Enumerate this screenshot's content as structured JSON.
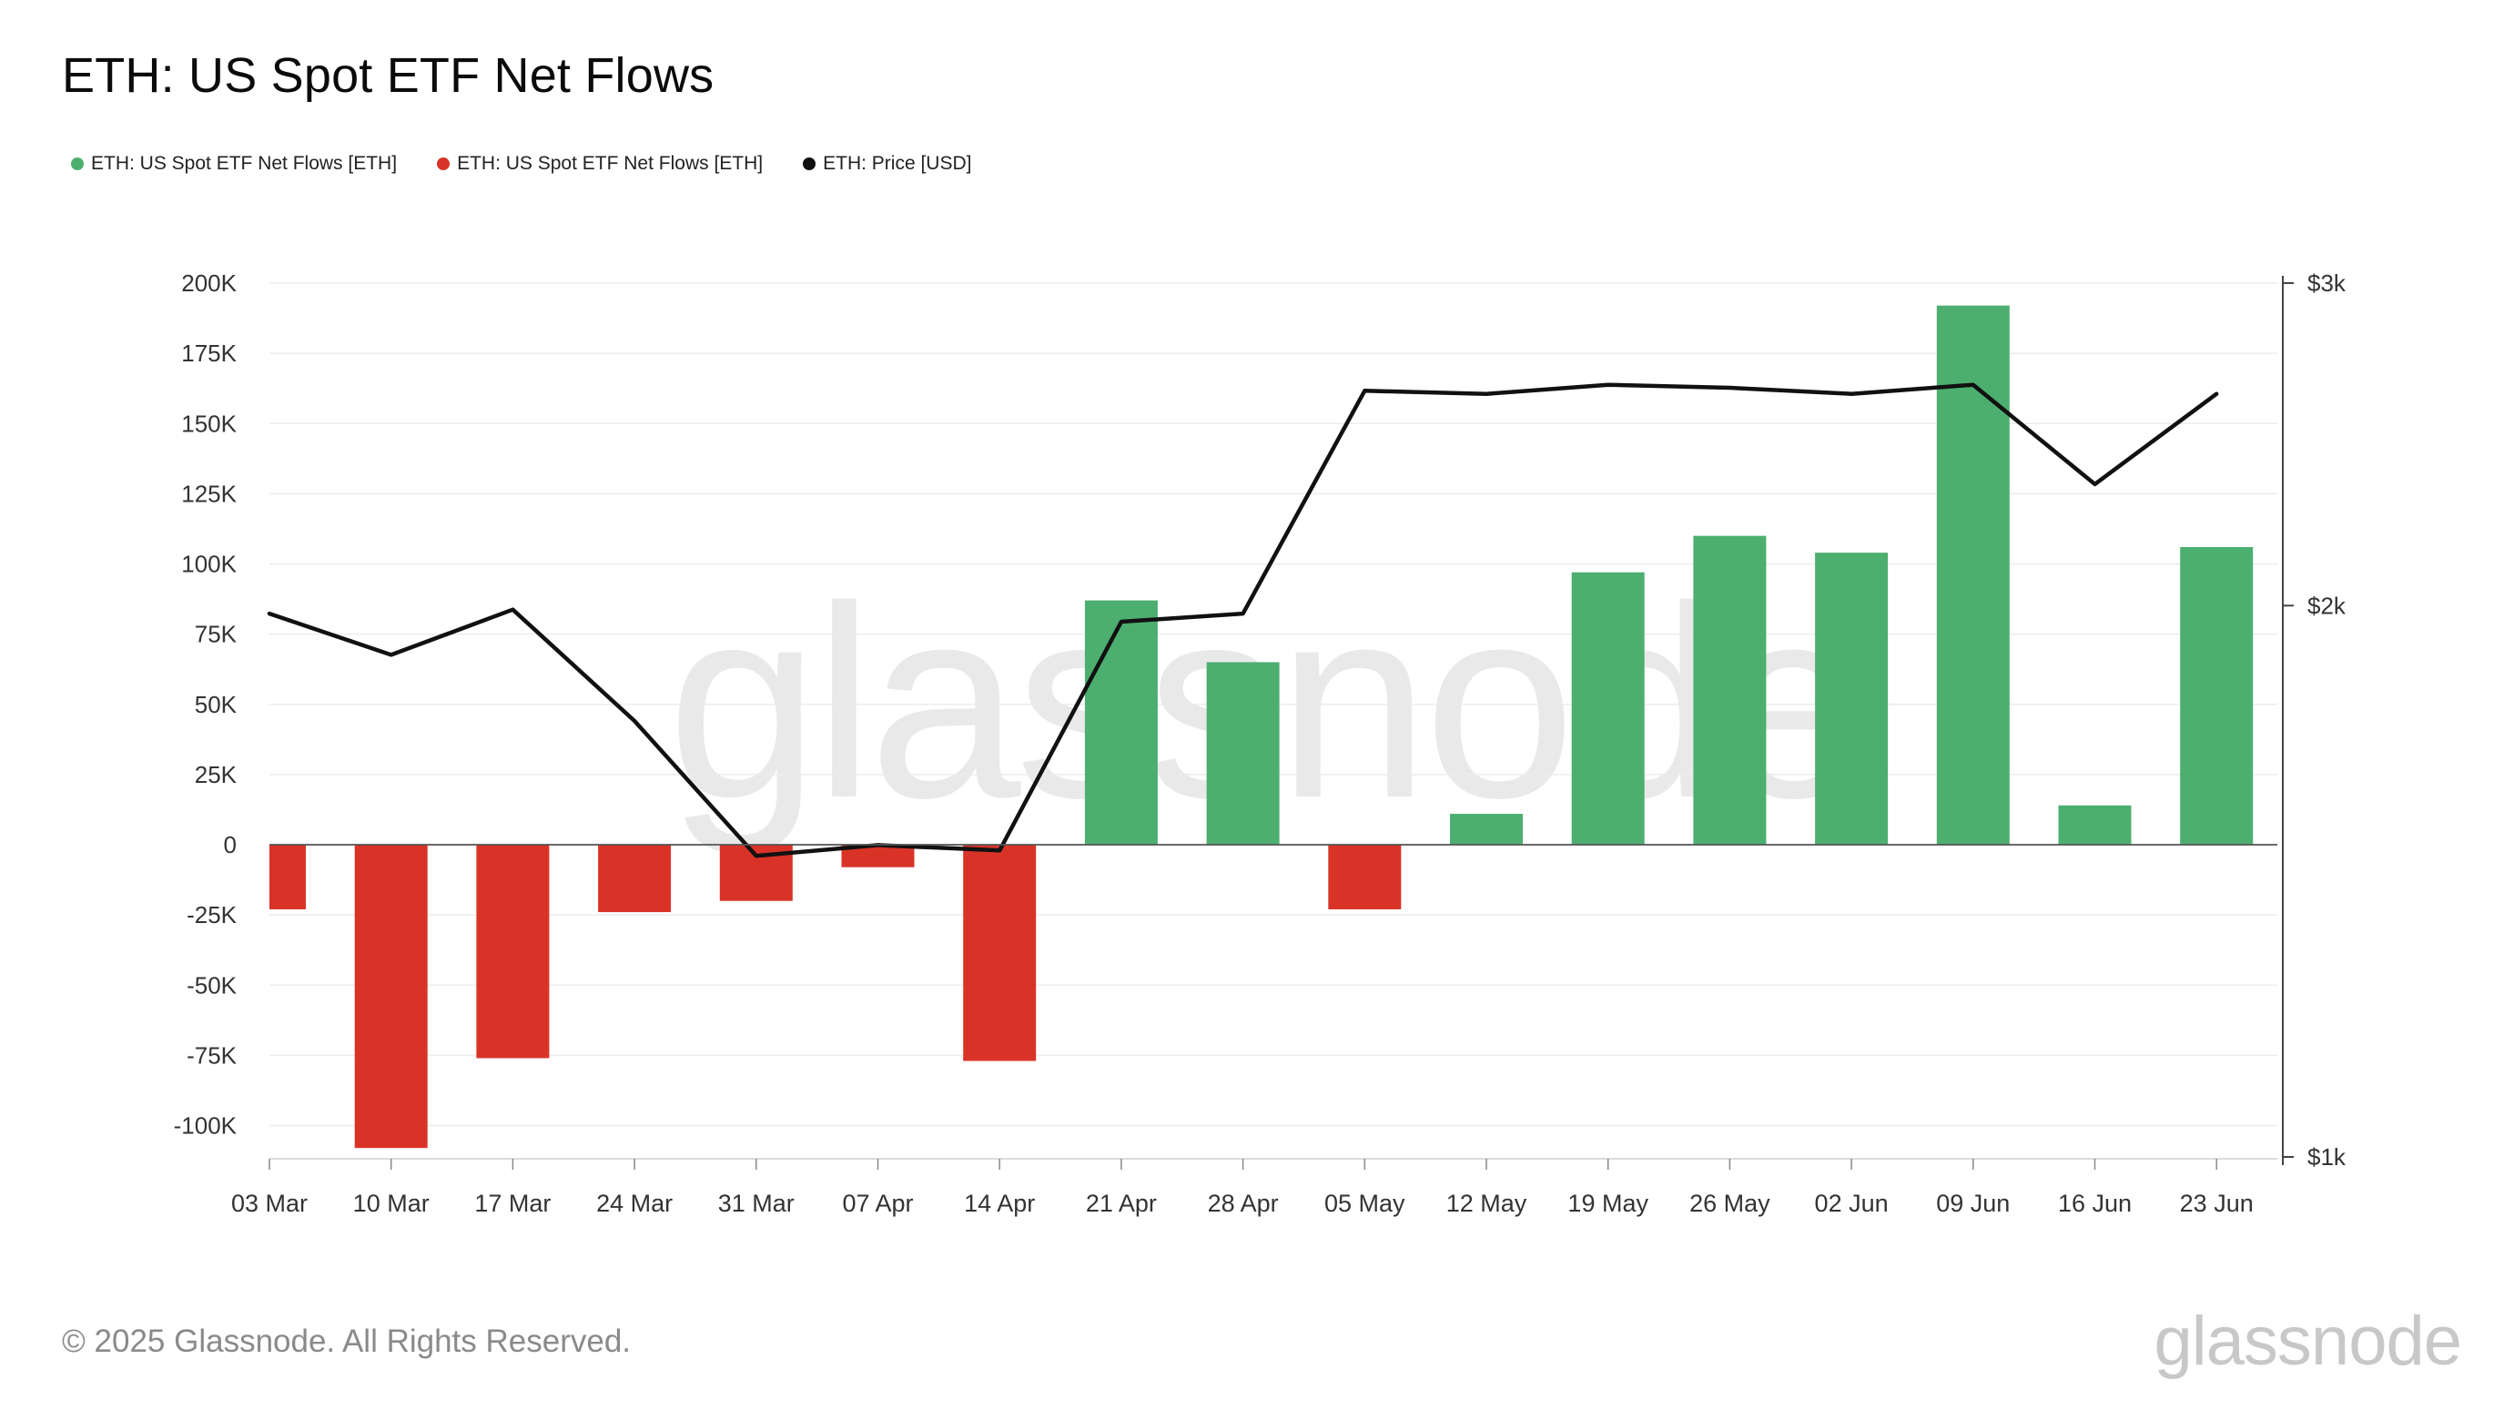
{
  "title": "ETH: US Spot ETF Net Flows",
  "legend": [
    {
      "label": "ETH: US Spot ETF Net Flows [ETH]",
      "color": "#4caf6f"
    },
    {
      "label": "ETH: US Spot ETF Net Flows [ETH]",
      "color": "#d93328"
    },
    {
      "label": "ETH: Price [USD]",
      "color": "#111111"
    }
  ],
  "footer": "© 2025 Glassnode. All Rights Reserved.",
  "brand": "glassnode",
  "watermark": "glassnode",
  "chart_data": {
    "type": "bar",
    "categories": [
      "03 Mar",
      "10 Mar",
      "17 Mar",
      "24 Mar",
      "31 Mar",
      "07 Apr",
      "14 Apr",
      "21 Apr",
      "28 Apr",
      "05 May",
      "12 May",
      "19 May",
      "26 May",
      "02 Jun",
      "09 Jun",
      "16 Jun",
      "23 Jun"
    ],
    "series": [
      {
        "type": "bar",
        "values": [
          -23000,
          -108000,
          -76000,
          -24000,
          -20000,
          -8000,
          -77000,
          87000,
          65000,
          -23000,
          11000,
          97000,
          110000,
          104000,
          192000,
          14000,
          106000
        ],
        "color_positive": "#4caf6f",
        "color_negative": "#d93328"
      },
      {
        "type": "line",
        "values": [
          1980,
          1880,
          1990,
          1730,
          1460,
          1480,
          1470,
          1960,
          1980,
          2620,
          2610,
          2640,
          2630,
          2610,
          2640,
          2330,
          2610
        ],
        "color": "#111111",
        "axis": "right"
      }
    ],
    "y_left": {
      "ylim": [
        -110000,
        200000
      ],
      "ticks": [
        200000,
        175000,
        150000,
        125000,
        100000,
        75000,
        50000,
        25000,
        0,
        -25000,
        -50000,
        -75000,
        -100000
      ],
      "tick_labels": [
        "200K",
        "175K",
        "150K",
        "125K",
        "100K",
        "75K",
        "50K",
        "25K",
        "0",
        "-25K",
        "-50K",
        "-75K",
        "-100K"
      ]
    },
    "y_right": {
      "scale": "log",
      "ylim": [
        1000,
        3000
      ],
      "ticks": [
        3000,
        2000,
        1000
      ],
      "tick_labels": [
        "$3k",
        "$2k",
        "$1k"
      ]
    },
    "grid": true
  }
}
